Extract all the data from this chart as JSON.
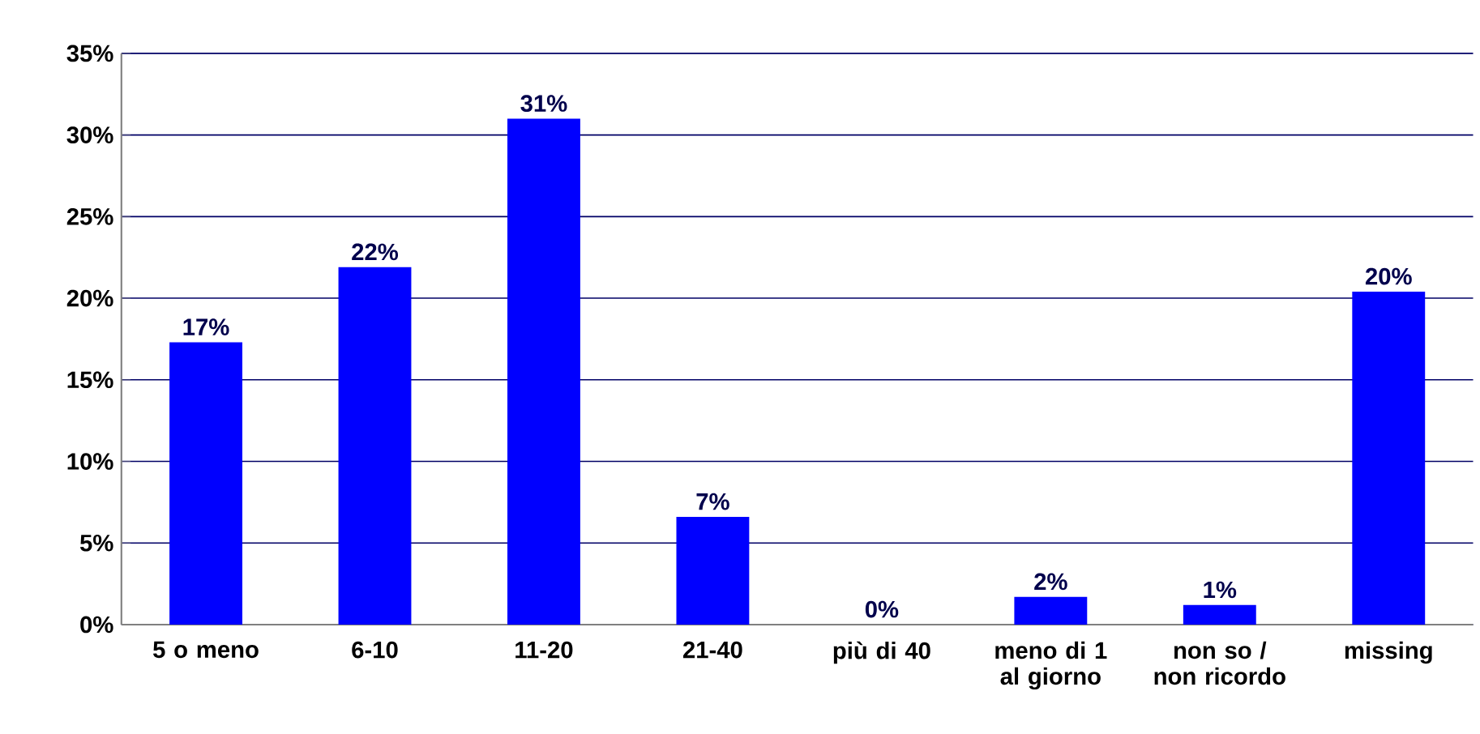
{
  "chart_data": {
    "type": "bar",
    "categories": [
      "5 o meno",
      "6-10",
      "11-20",
      "21-40",
      "più di 40",
      "meno di 1 al giorno",
      "non so / non ricordo",
      "missing"
    ],
    "values": [
      17.3,
      21.9,
      31.0,
      6.6,
      0,
      1.7,
      1.2,
      20.4
    ],
    "value_labels": [
      "17%",
      "22%",
      "31%",
      "7%",
      "0%",
      "2%",
      "1%",
      "20%"
    ],
    "color": "#0000ff",
    "ylim": [
      0,
      35
    ],
    "yticks": [
      {
        "value": 0,
        "label": "0%"
      },
      {
        "value": 5,
        "label": "5%"
      },
      {
        "value": 10,
        "label": "10%"
      },
      {
        "value": 15,
        "label": "15%"
      },
      {
        "value": 20,
        "label": "20%"
      },
      {
        "value": 25,
        "label": "25%"
      },
      {
        "value": 30,
        "label": "30%"
      },
      {
        "value": 35,
        "label": "35%"
      }
    ],
    "grid": "y"
  }
}
